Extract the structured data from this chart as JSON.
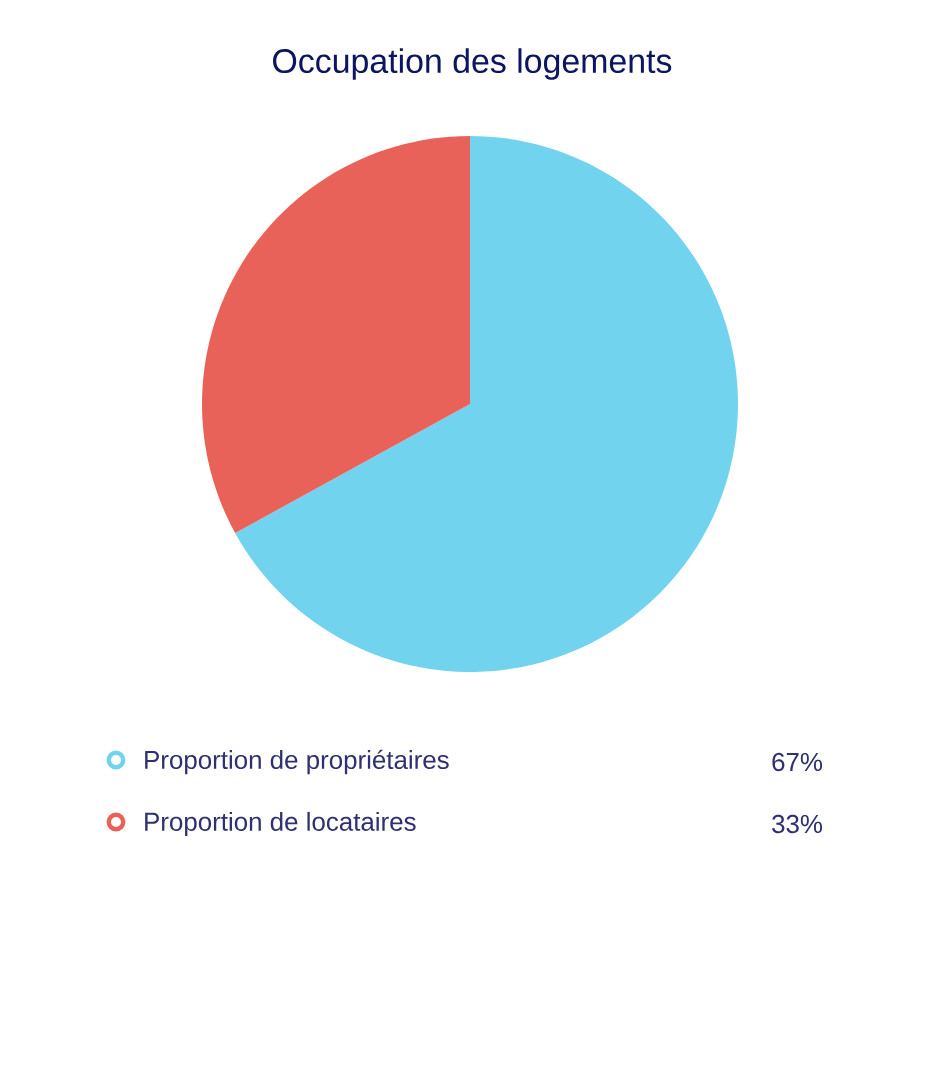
{
  "chart_data": {
    "type": "pie",
    "title": "Occupation des logements",
    "categories": [
      "Proportion de propriétaires",
      "Proportion de locataires"
    ],
    "values": [
      67,
      33
    ],
    "value_labels": [
      "67%",
      "33%"
    ],
    "colors": [
      "#72d3ee",
      "#e8625a"
    ],
    "legend": "bottom"
  }
}
